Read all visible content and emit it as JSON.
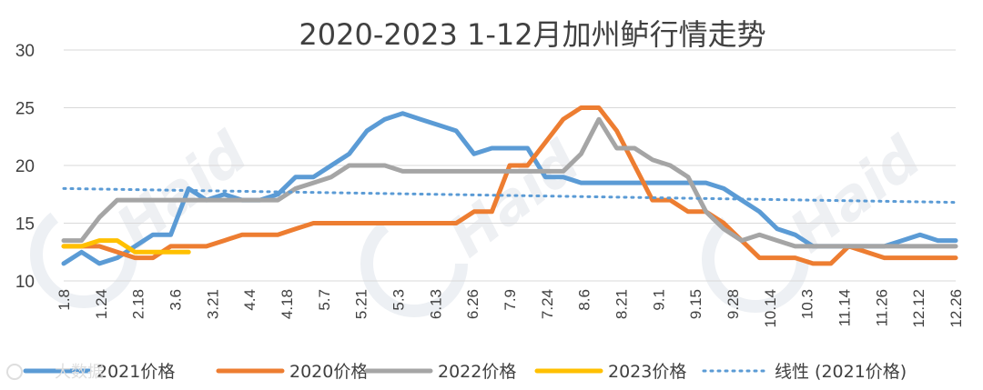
{
  "colors": {
    "s2021": "#5b9bd5",
    "s2020": "#ed7d31",
    "s2022": "#a5a5a5",
    "s2023": "#ffc000",
    "trend": "#5b9bd5",
    "grid": "#d9d9d9",
    "text": "#404040",
    "watermark": "#eef0f3"
  },
  "watermark": {
    "brand": "Haid",
    "corner_text": "大数据"
  },
  "chart_data": {
    "type": "line",
    "title": "2020-2023 1-12月加州鲈行情走势",
    "xlabel": "",
    "ylabel": "",
    "ylim": [
      10,
      30
    ],
    "yticks": [
      10,
      15,
      20,
      25,
      30
    ],
    "grid": true,
    "legend_position": "bottom",
    "xtick_labels": [
      "1.8",
      "1.24",
      "2.18",
      "3.6",
      "3.21",
      "4.4",
      "4.18",
      "5.7",
      "5.21",
      "5.3",
      "6.13",
      "6.26",
      "7.9",
      "7.24",
      "8.6",
      "8.21",
      "9.1",
      "9.15",
      "9.28",
      "10.14",
      "10.3",
      "11.14",
      "11.26",
      "12.12",
      "12.26"
    ],
    "series": [
      {
        "name": "2021价格",
        "color": "#5b9bd5",
        "values": [
          11.5,
          12.5,
          11.5,
          12,
          13,
          14,
          14,
          18,
          17,
          17.5,
          17,
          17,
          17.5,
          19,
          19,
          20,
          21,
          23,
          24,
          24.5,
          24,
          23.5,
          23,
          21,
          21.5,
          21.5,
          21.5,
          19,
          19,
          18.5,
          18.5,
          18.5,
          18.5,
          18.5,
          18.5,
          18.5,
          18.5,
          18,
          17,
          16,
          14.5,
          14,
          13,
          13,
          13,
          13,
          13,
          13.5,
          14,
          13.5,
          13.5
        ]
      },
      {
        "name": "2020价格",
        "color": "#ed7d31",
        "values": [
          13,
          13,
          13,
          12.5,
          12,
          12,
          13,
          13,
          13,
          13.5,
          14,
          14,
          14,
          14.5,
          15,
          15,
          15,
          15,
          15,
          15,
          15,
          15,
          15,
          16,
          16,
          20,
          20,
          22,
          24,
          25,
          25,
          23,
          20,
          17,
          17,
          16,
          16,
          15,
          13.5,
          12,
          12,
          12,
          11.5,
          11.5,
          13,
          12.5,
          12,
          12,
          12,
          12,
          12
        ]
      },
      {
        "name": "2022价格",
        "color": "#a5a5a5",
        "values": [
          13.5,
          13.5,
          15.5,
          17,
          17,
          17,
          17,
          17,
          17,
          17,
          17,
          17,
          17,
          18,
          18.5,
          19,
          20,
          20,
          20,
          19.5,
          19.5,
          19.5,
          19.5,
          19.5,
          19.5,
          19.5,
          19.5,
          19.5,
          19.5,
          21,
          24,
          21.5,
          21.5,
          20.5,
          20,
          19,
          16,
          14.5,
          13.5,
          14,
          13.5,
          13,
          13,
          13,
          13,
          13,
          13,
          13,
          13,
          13,
          13
        ]
      },
      {
        "name": "2023价格",
        "color": "#ffc000",
        "values": [
          13,
          13,
          13.5,
          13.5,
          12.5,
          12.5,
          12.5,
          12.5
        ]
      },
      {
        "name": "线性 (2021价格)",
        "color": "#5b9bd5",
        "dashed": true,
        "values": [
          18.0,
          16.8
        ]
      }
    ]
  }
}
